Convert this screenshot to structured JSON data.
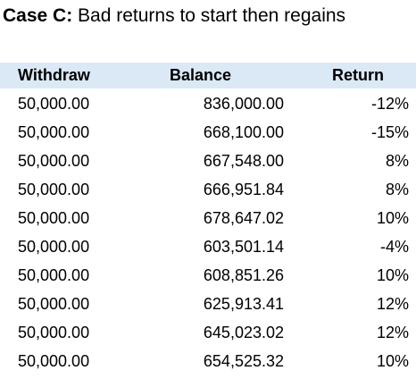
{
  "title": {
    "case_label": "Case C:",
    "description": "Bad returns to start then regains"
  },
  "table": {
    "headers": {
      "withdraw": "Withdraw",
      "balance": "Balance",
      "return": "Return"
    },
    "rows": [
      {
        "withdraw": "50,000.00",
        "balance": "836,000.00",
        "return": "-12%"
      },
      {
        "withdraw": "50,000.00",
        "balance": "668,100.00",
        "return": "-15%"
      },
      {
        "withdraw": "50,000.00",
        "balance": "667,548.00",
        "return": "8%"
      },
      {
        "withdraw": "50,000.00",
        "balance": "666,951.84",
        "return": "8%"
      },
      {
        "withdraw": "50,000.00",
        "balance": "678,647.02",
        "return": "10%"
      },
      {
        "withdraw": "50,000.00",
        "balance": "603,501.14",
        "return": "-4%"
      },
      {
        "withdraw": "50,000.00",
        "balance": "608,851.26",
        "return": "10%"
      },
      {
        "withdraw": "50,000.00",
        "balance": "625,913.41",
        "return": "12%"
      },
      {
        "withdraw": "50,000.00",
        "balance": "645,023.02",
        "return": "12%"
      },
      {
        "withdraw": "50,000.00",
        "balance": "654,525.32",
        "return": "10%"
      }
    ]
  },
  "colors": {
    "header_band": "#dbe9f7",
    "text": "#000000",
    "background": "#ffffff"
  }
}
